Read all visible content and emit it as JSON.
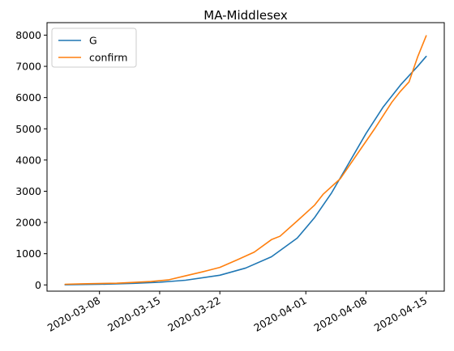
{
  "chart_data": {
    "type": "line",
    "title": "MA-Middlesex",
    "xlabel": "",
    "ylabel": "",
    "x_range": [
      "2020-03-04",
      "2020-04-15"
    ],
    "ylim": [
      -200,
      8400
    ],
    "y_ticks": [
      0,
      1000,
      2000,
      3000,
      4000,
      5000,
      6000,
      7000,
      8000
    ],
    "x_ticks": [
      "2020-03-08",
      "2020-03-15",
      "2020-03-22",
      "2020-04-01",
      "2020-04-08",
      "2020-04-15"
    ],
    "legend_position": "upper-left",
    "grid": false,
    "series": [
      {
        "name": "G",
        "color": "#1f77b4",
        "points": [
          [
            "2020-03-04",
            5
          ],
          [
            "2020-03-08",
            20
          ],
          [
            "2020-03-12",
            50
          ],
          [
            "2020-03-15",
            85
          ],
          [
            "2020-03-18",
            150
          ],
          [
            "2020-03-22",
            310
          ],
          [
            "2020-03-25",
            540
          ],
          [
            "2020-03-28",
            900
          ],
          [
            "2020-03-31",
            1500
          ],
          [
            "2020-04-02",
            2150
          ],
          [
            "2020-04-04",
            2950
          ],
          [
            "2020-04-06",
            3900
          ],
          [
            "2020-04-08",
            4850
          ],
          [
            "2020-04-10",
            5700
          ],
          [
            "2020-04-12",
            6400
          ],
          [
            "2020-04-14",
            7000
          ],
          [
            "2020-04-15",
            7320
          ]
        ]
      },
      {
        "name": "confirm",
        "color": "#ff7f0e",
        "points": [
          [
            "2020-03-04",
            20
          ],
          [
            "2020-03-06",
            35
          ],
          [
            "2020-03-10",
            55
          ],
          [
            "2020-03-14",
            110
          ],
          [
            "2020-03-16",
            160
          ],
          [
            "2020-03-18",
            290
          ],
          [
            "2020-03-20",
            420
          ],
          [
            "2020-03-22",
            560
          ],
          [
            "2020-03-24",
            800
          ],
          [
            "2020-03-26",
            1050
          ],
          [
            "2020-03-28",
            1450
          ],
          [
            "2020-03-29",
            1560
          ],
          [
            "2020-03-31",
            2050
          ],
          [
            "2020-04-02",
            2550
          ],
          [
            "2020-04-03",
            2900
          ],
          [
            "2020-04-05",
            3400
          ],
          [
            "2020-04-07",
            4200
          ],
          [
            "2020-04-09",
            5000
          ],
          [
            "2020-04-11",
            5850
          ],
          [
            "2020-04-12",
            6200
          ],
          [
            "2020-04-13",
            6500
          ],
          [
            "2020-04-14",
            7300
          ],
          [
            "2020-04-15",
            7980
          ]
        ]
      }
    ]
  }
}
